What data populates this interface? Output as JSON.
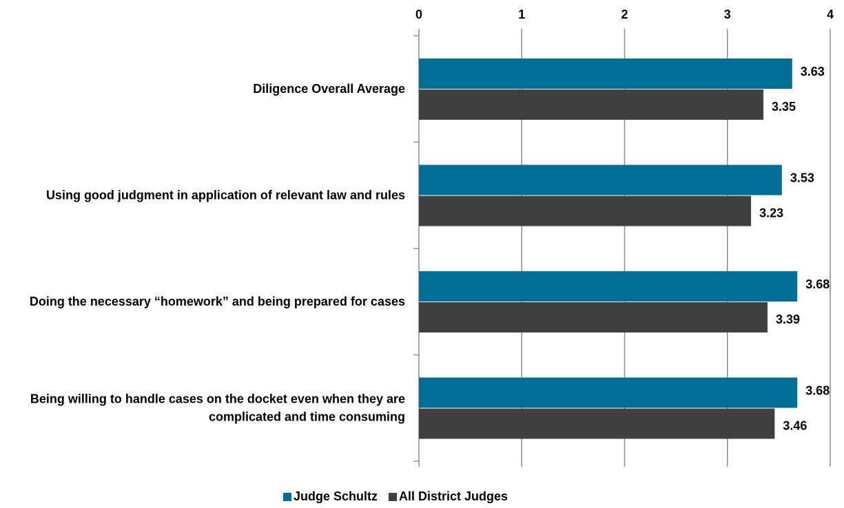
{
  "chart_data": {
    "type": "hbar",
    "categories": [
      "Diligence Overall Average",
      "Using good judgment in application of relevant law and rules",
      "Doing the necessary “homework” and being prepared for cases",
      "Being willing to handle cases on the docket even when they are complicated and time consuming"
    ],
    "series": [
      {
        "name": "Judge Schultz",
        "color": "#006e96",
        "values": [
          3.63,
          3.53,
          3.68,
          3.68
        ]
      },
      {
        "name": "All District Judges",
        "color": "#404040",
        "values": [
          3.35,
          3.23,
          3.39,
          3.46
        ]
      }
    ],
    "xlim": [
      0,
      4
    ],
    "xticks": [
      0,
      1,
      2,
      3,
      4
    ],
    "grid": true,
    "legend": "bottom"
  }
}
